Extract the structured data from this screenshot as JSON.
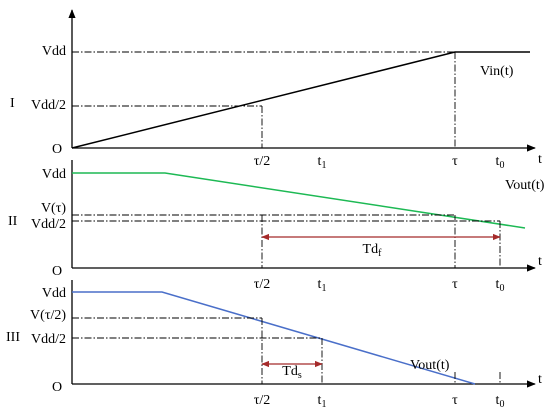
{
  "panels": [
    {
      "roman": "I",
      "origin": "O",
      "y_labels": [
        "Vdd",
        "Vdd/2"
      ],
      "x_labels": [
        {
          "base": "τ/2"
        },
        {
          "base": "t",
          "sub": "1"
        },
        {
          "base": "τ"
        },
        {
          "base": "t",
          "sub": "0"
        }
      ],
      "x_axis": "t",
      "curve_label": "Vin(t)"
    },
    {
      "roman": "II",
      "origin": "O",
      "y_labels": [
        "Vdd",
        "V(τ)",
        "Vdd/2"
      ],
      "x_labels": [
        {
          "base": "τ/2"
        },
        {
          "base": "t",
          "sub": "1"
        },
        {
          "base": "τ"
        },
        {
          "base": "t",
          "sub": "0"
        }
      ],
      "x_axis": "t",
      "curve_label": "Vout(t)",
      "delay_label": {
        "base": "Td",
        "sub": "f"
      }
    },
    {
      "roman": "III",
      "origin": "O",
      "y_labels": [
        "Vdd",
        "V(τ/2)",
        "Vdd/2"
      ],
      "x_labels": [
        {
          "base": "τ/2"
        },
        {
          "base": "t",
          "sub": "1"
        },
        {
          "base": "τ"
        },
        {
          "base": "t",
          "sub": "0"
        }
      ],
      "x_axis": "t",
      "curve_label": "Vout(t)",
      "delay_label": {
        "base": "Td",
        "sub": "s"
      }
    }
  ]
}
